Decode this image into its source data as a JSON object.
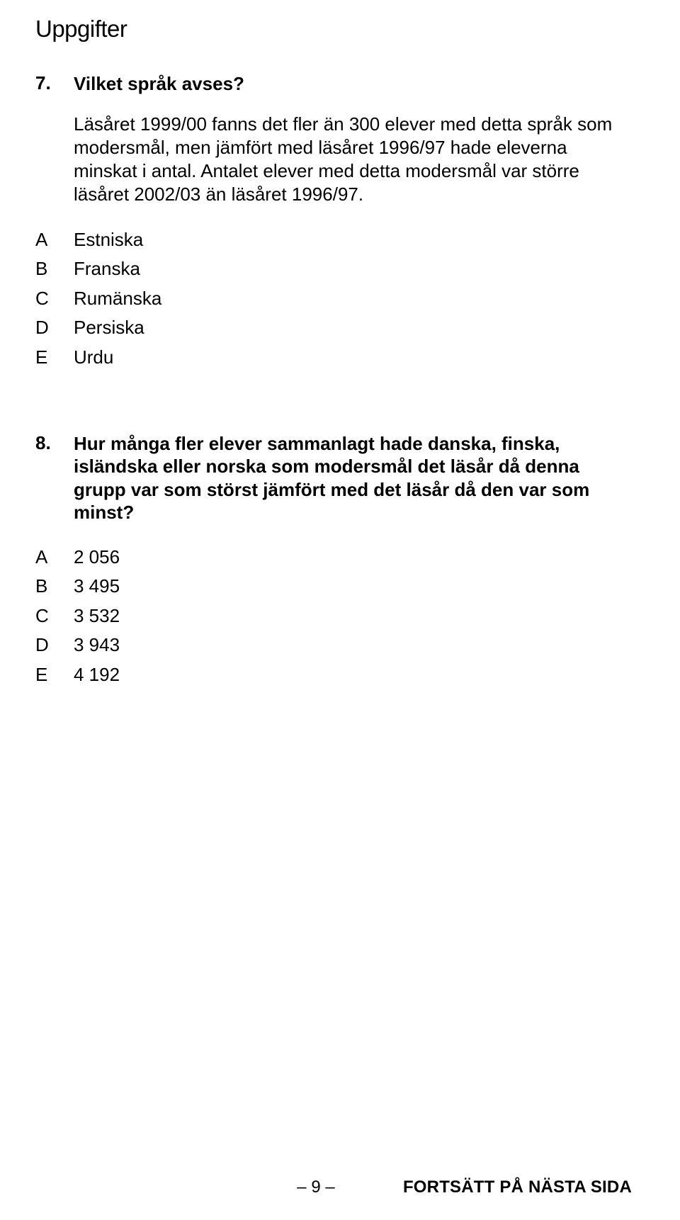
{
  "section_title": "Uppgifter",
  "q7": {
    "number": "7.",
    "title": "Vilket språk avses?",
    "body": "Läsåret 1999/00 fanns det fler än 300 elever med detta språk som modersmål, men jämfört med läsåret 1996/97 hade eleverna minskat i antal. Antalet elever med detta modersmål var större läsåret 2002/03 än läsåret 1996/97.",
    "options": [
      {
        "letter": "A",
        "text": "Estniska"
      },
      {
        "letter": "B",
        "text": "Franska"
      },
      {
        "letter": "C",
        "text": "Rumänska"
      },
      {
        "letter": "D",
        "text": "Persiska"
      },
      {
        "letter": "E",
        "text": "Urdu"
      }
    ]
  },
  "q8": {
    "number": "8.",
    "title": "Hur många fler elever sammanlagt hade danska, finska, isländska eller norska som modersmål det läsår då denna grupp var som störst jämfört med det läsår då den var som minst?",
    "options": [
      {
        "letter": "A",
        "text": "2 056"
      },
      {
        "letter": "B",
        "text": "3 495"
      },
      {
        "letter": "C",
        "text": "3 532"
      },
      {
        "letter": "D",
        "text": "3 943"
      },
      {
        "letter": "E",
        "text": "4 192"
      }
    ]
  },
  "footer": {
    "page_num": "– 9 –",
    "next": "FORTSÄTT PÅ NÄSTA SIDA"
  }
}
